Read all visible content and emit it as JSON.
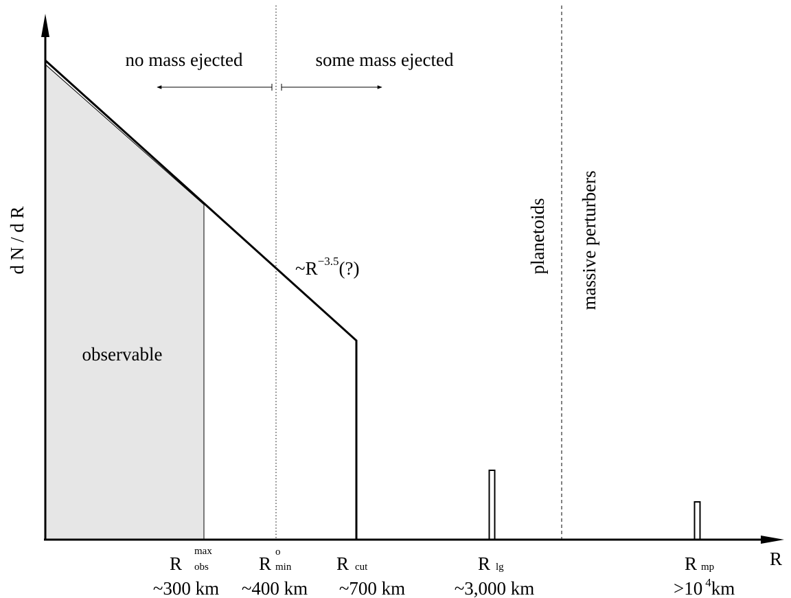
{
  "axes": {
    "y_label": "d N / d R",
    "x_label": "R"
  },
  "regions": {
    "observable": "observable",
    "no_mass": "no mass ejected",
    "some_mass": "some mass ejected",
    "planetoids": "planetoids",
    "massive_perturbers": "massive perturbers"
  },
  "slope_label": {
    "base": "~R",
    "exponent": "−3.5",
    "suffix": "(?)"
  },
  "markers": [
    {
      "symbol": "R",
      "sup": "max",
      "sub": "obs",
      "value": "~300 km"
    },
    {
      "symbol": "R",
      "sup": "o",
      "sub": "min",
      "value": "~400 km"
    },
    {
      "symbol": "R",
      "sup": "",
      "sub": "cut",
      "value": "~700 km"
    },
    {
      "symbol": "R",
      "sup": "",
      "sub": "lg",
      "value": "~3,000 km"
    },
    {
      "symbol": "R",
      "sup": "",
      "sub": "mp",
      "value_pre": ">10",
      "value_sup": "4",
      "value_post": "km"
    }
  ],
  "colors": {
    "ink": "#000000",
    "observable_fill": "#e6e6e6"
  }
}
